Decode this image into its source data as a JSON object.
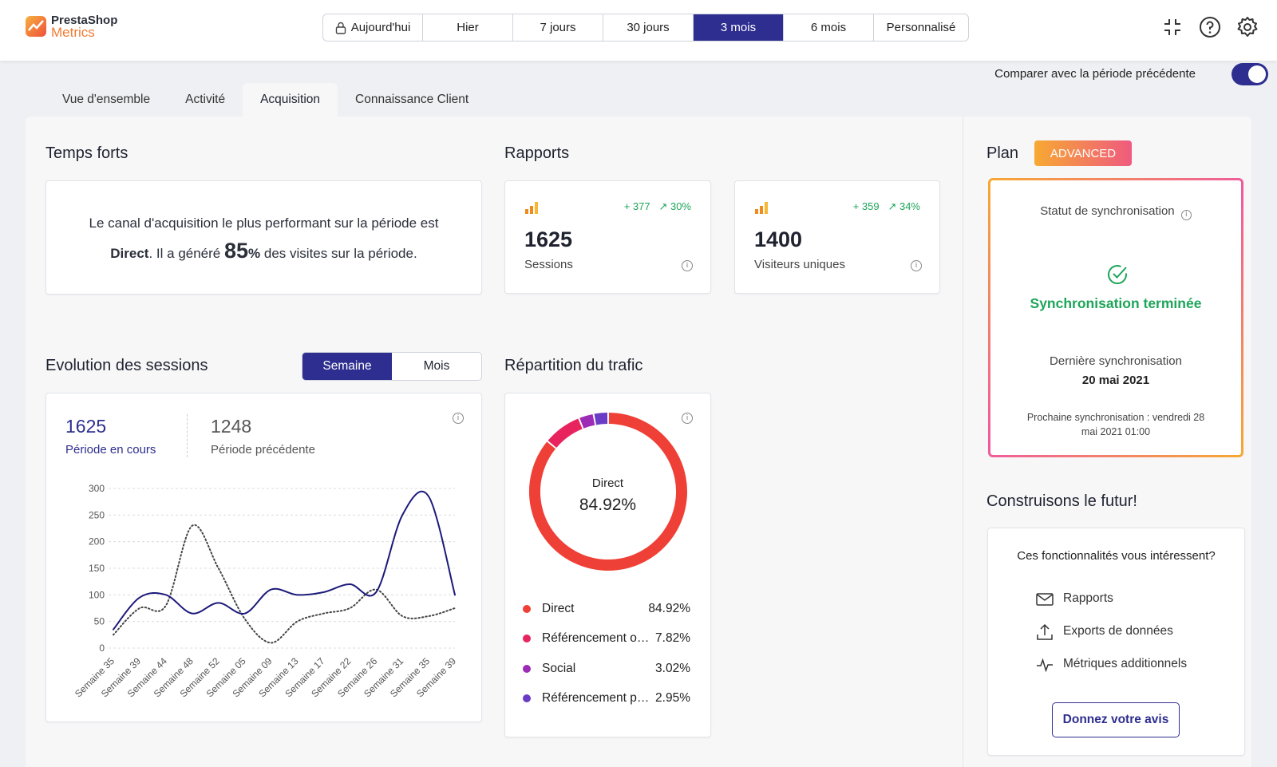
{
  "header": {
    "logo_line1": "PrestaShop",
    "logo_line2": "Metrics",
    "periods": [
      "Aujourd'hui",
      "Hier",
      "7 jours",
      "30 jours",
      "3 mois",
      "6 mois",
      "Personnalisé"
    ],
    "active_period": "3 mois",
    "icons": [
      "collapse-icon",
      "help-icon",
      "gear-icon"
    ]
  },
  "compare": {
    "label": "Comparer avec la période précédente",
    "enabled": true
  },
  "tabs": [
    "Vue d'ensemble",
    "Activité",
    "Acquisition",
    "Connaissance Client"
  ],
  "active_tab": "Acquisition",
  "highlights": {
    "title": "Temps forts",
    "text_before": "Le canal d'acquisition le plus performant sur la période est",
    "channel": "Direct",
    "text_mid": ". Il a généré ",
    "percent": "85",
    "percent_sign": "%",
    "text_after": " des visites sur la période."
  },
  "reports": {
    "title": "Rapports",
    "cards": [
      {
        "value": "1625",
        "label": "Sessions",
        "delta_abs": "+ 377",
        "delta_pct": "30%"
      },
      {
        "value": "1400",
        "label": "Visiteurs uniques",
        "delta_abs": "+ 359",
        "delta_pct": "34%"
      }
    ]
  },
  "evolution": {
    "title": "Evolution des sessions",
    "toggle": [
      "Semaine",
      "Mois"
    ],
    "active_toggle": "Semaine",
    "current_value": "1625",
    "current_label": "Période en cours",
    "previous_value": "1248",
    "previous_label": "Période précédente"
  },
  "traffic": {
    "title": "Répartition du trafic",
    "center_label": "Direct",
    "center_value": "84.92%",
    "legend": [
      {
        "name": "Direct",
        "value": "84.92%",
        "color": "#ef4037"
      },
      {
        "name": "Référencement organique",
        "value": "7.82%",
        "color": "#e8245f"
      },
      {
        "name": "Social",
        "value": "3.02%",
        "color": "#9c2bb5"
      },
      {
        "name": "Référencement payant",
        "value": "2.95%",
        "color": "#6a3bc4"
      }
    ]
  },
  "plan": {
    "title": "Plan",
    "badge": "ADVANCED",
    "sync_status_label": "Statut de synchronisation",
    "sync_status": "Synchronisation terminée",
    "last_sync_label": "Dernière synchronisation",
    "last_sync_date": "20 mai 2021",
    "next_sync_line1": "Prochaine synchronisation : vendredi 28",
    "next_sync_line2": "mai 2021 01:00"
  },
  "future": {
    "title": "Construisons le futur!",
    "question": "Ces fonctionnalités vous intéressent?",
    "features": [
      {
        "label": "Rapports",
        "icon": "mail-icon"
      },
      {
        "label": "Exports de données",
        "icon": "upload-icon"
      },
      {
        "label": "Métriques additionnels",
        "icon": "pulse-icon"
      }
    ],
    "button": "Donnez votre avis"
  },
  "colors": {
    "accent": "#2d2e8f",
    "success": "#1ea55a",
    "current_line": "#1c1a7a",
    "previous_line": "#444444"
  },
  "chart_data": {
    "type": "line",
    "x": [
      "Semaine 35",
      "Semaine 39",
      "Semaine 44",
      "Semaine 48",
      "Semaine 52",
      "Semaine 05",
      "Semaine 09",
      "Semaine 13",
      "Semaine 17",
      "Semaine 22",
      "Semaine 26",
      "Semaine 31",
      "Semaine 35",
      "Semaine 39"
    ],
    "series": [
      {
        "name": "Période en cours",
        "values": [
          35,
          95,
          100,
          65,
          85,
          65,
          110,
          100,
          105,
          120,
          105,
          250,
          285,
          100
        ],
        "style": "solid"
      },
      {
        "name": "Période précédente",
        "values": [
          25,
          75,
          80,
          230,
          150,
          55,
          10,
          50,
          65,
          75,
          110,
          60,
          60,
          75
        ],
        "style": "dotted"
      }
    ],
    "ylim": [
      0,
      300
    ],
    "yticks": [
      0,
      50,
      100,
      150,
      200,
      250,
      300
    ],
    "grid": true
  },
  "donut_data": {
    "type": "pie",
    "categories": [
      "Direct",
      "Référencement organique",
      "Social",
      "Référencement payant"
    ],
    "values": [
      84.92,
      7.82,
      3.02,
      2.95
    ]
  }
}
